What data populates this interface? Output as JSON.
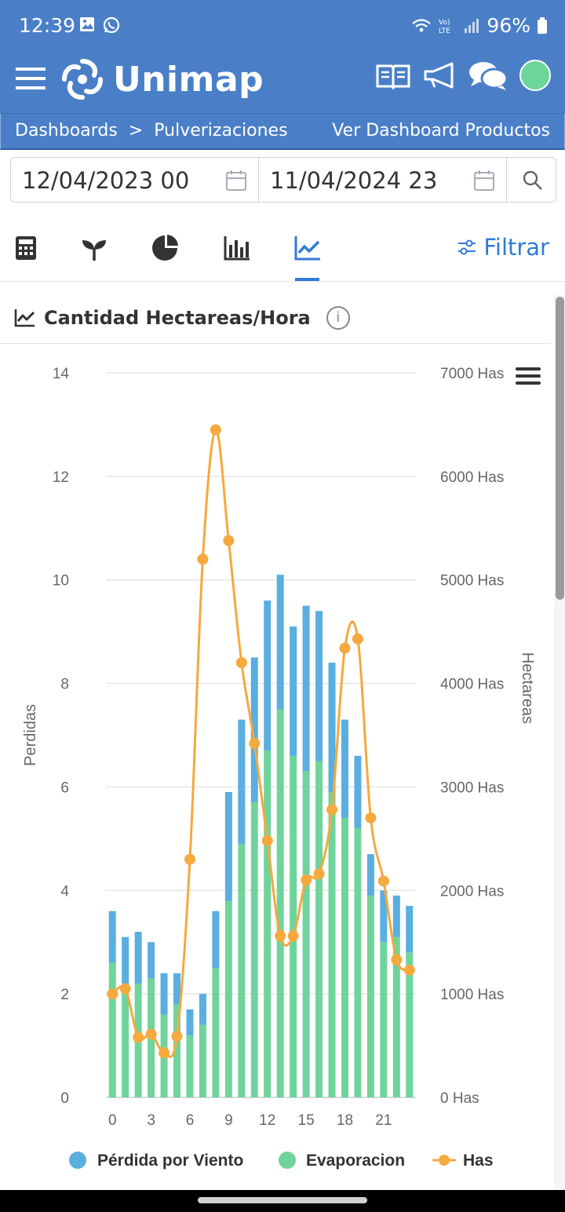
{
  "status_bar": {
    "time": "12:39",
    "battery": "96%",
    "icons": [
      "gallery-icon",
      "whatsapp-icon",
      "wifi-icon",
      "volte-icon",
      "signal-icon",
      "battery-icon"
    ]
  },
  "app": {
    "brand": "Unimap",
    "colors": {
      "primary": "#4a7fc8",
      "accent": "#2f7ad8",
      "online": "#6cd69a"
    }
  },
  "breadcrumb": {
    "root": "Dashboards",
    "separator": ">",
    "current": "Pulverizaciones",
    "link": "Ver Dashboard Productos"
  },
  "date_range": {
    "from": "12/04/2023 00",
    "to": "11/04/2024 23"
  },
  "tabs": [
    {
      "name": "calculator-tab",
      "icon": "calculator-icon",
      "active": false
    },
    {
      "name": "crop-tab",
      "icon": "sprout-icon",
      "active": false
    },
    {
      "name": "pie-tab",
      "icon": "pie-chart-icon",
      "active": false
    },
    {
      "name": "bars-tab",
      "icon": "bar-chart-icon",
      "active": false
    },
    {
      "name": "trend-tab",
      "icon": "trend-chart-icon",
      "active": true
    }
  ],
  "filter": {
    "label": "Filtrar"
  },
  "card": {
    "title": "Cantidad Hectareas/Hora",
    "info_glyph": "i"
  },
  "chart_data": {
    "type": "bar",
    "stacked": true,
    "categories": [
      0,
      1,
      2,
      3,
      4,
      5,
      6,
      7,
      8,
      9,
      10,
      11,
      12,
      13,
      14,
      15,
      16,
      17,
      18,
      19,
      20,
      21,
      22,
      23
    ],
    "x_tick_labels": [
      "0",
      "3",
      "6",
      "9",
      "12",
      "15",
      "18",
      "21"
    ],
    "ylabel": "Perdidas",
    "ylabel_right": "Hectareas",
    "ylim": [
      0,
      14
    ],
    "y_ticks": [
      "0",
      "2",
      "4",
      "6",
      "8",
      "10",
      "12",
      "14"
    ],
    "ylim_right": [
      0,
      7000
    ],
    "y_ticks_right": [
      "0 Has",
      "1000 Has",
      "2000 Has",
      "3000 Has",
      "4000 Has",
      "5000 Has",
      "6000 Has",
      "7000 Has"
    ],
    "grid": true,
    "legend_position": "bottom",
    "series": [
      {
        "name": "Pérdida por Viento",
        "type": "bar",
        "color": "#5aaee0",
        "values": [
          1.0,
          0.9,
          1.0,
          0.7,
          0.8,
          0.6,
          0.5,
          0.6,
          1.1,
          2.1,
          2.4,
          2.8,
          2.9,
          2.6,
          2.5,
          3.2,
          2.9,
          2.5,
          1.9,
          1.4,
          0.8,
          1.0,
          0.8,
          0.9
        ]
      },
      {
        "name": "Evaporacion",
        "type": "bar",
        "color": "#6fd49c",
        "values": [
          2.6,
          2.2,
          2.2,
          2.3,
          1.6,
          1.8,
          1.2,
          1.4,
          2.5,
          3.8,
          4.9,
          5.7,
          6.7,
          7.5,
          6.6,
          6.3,
          6.5,
          5.9,
          5.4,
          5.2,
          3.9,
          3.0,
          3.1,
          2.8
        ]
      },
      {
        "name": "Has",
        "type": "line",
        "axis": "right",
        "color": "#f5a93e",
        "values": [
          1000,
          1050,
          580,
          610,
          430,
          590,
          2300,
          5200,
          6450,
          5380,
          4200,
          3420,
          2480,
          1560,
          1560,
          2100,
          2160,
          2780,
          4340,
          4430,
          2700,
          2090,
          1330,
          1230
        ]
      }
    ]
  },
  "legend": [
    {
      "label": "Pérdida por Viento",
      "color": "#5aaee0"
    },
    {
      "label": "Evaporacion",
      "color": "#6fd49c"
    },
    {
      "label": "Has",
      "color": "#f5a93e"
    }
  ],
  "chart_menu": {
    "icon": "hamburger-icon"
  }
}
